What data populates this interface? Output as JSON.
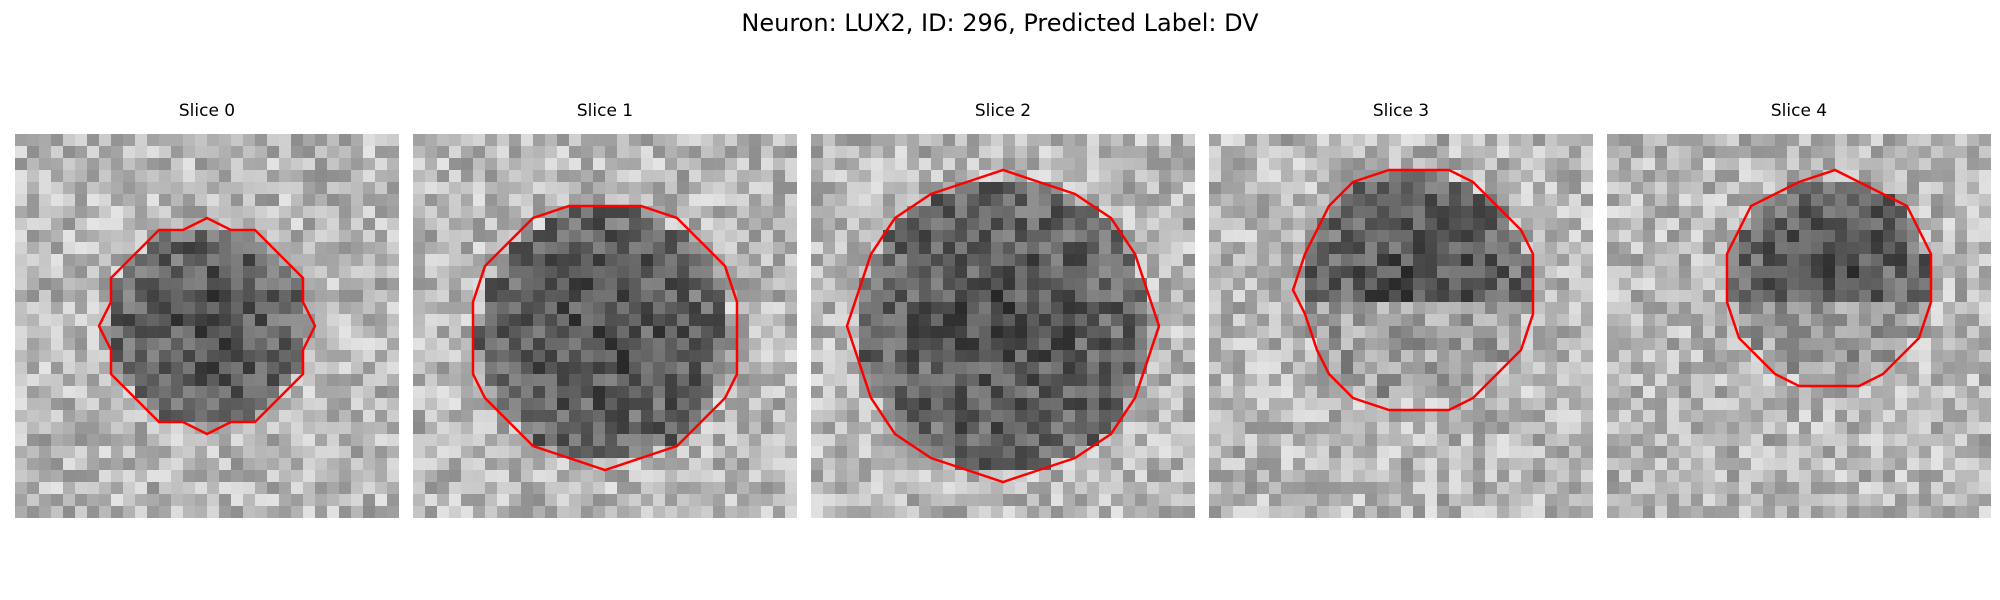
{
  "figure": {
    "title": "Neuron: LUX2, ID: 296, Predicted Label: DV"
  },
  "panels": [
    {
      "title": "Slice 0",
      "seed": 11,
      "dark_center": [
        0.5,
        0.5
      ],
      "dark_radius": 0.26,
      "bright_core": false
    },
    {
      "title": "Slice 1",
      "seed": 23,
      "dark_center": [
        0.5,
        0.52
      ],
      "dark_radius": 0.33,
      "bright_core": false
    },
    {
      "title": "Slice 2",
      "seed": 37,
      "dark_center": [
        0.5,
        0.5
      ],
      "dark_radius": 0.38,
      "bright_core": false
    },
    {
      "title": "Slice 3",
      "seed": 41,
      "dark_center": [
        0.54,
        0.4
      ],
      "dark_radius": 0.3,
      "bright_core": true
    },
    {
      "title": "Slice 4",
      "seed": 53,
      "dark_center": [
        0.58,
        0.38
      ],
      "dark_radius": 0.26,
      "bright_core": true
    }
  ],
  "contour_color": "#ff0000",
  "colormap": "gray"
}
